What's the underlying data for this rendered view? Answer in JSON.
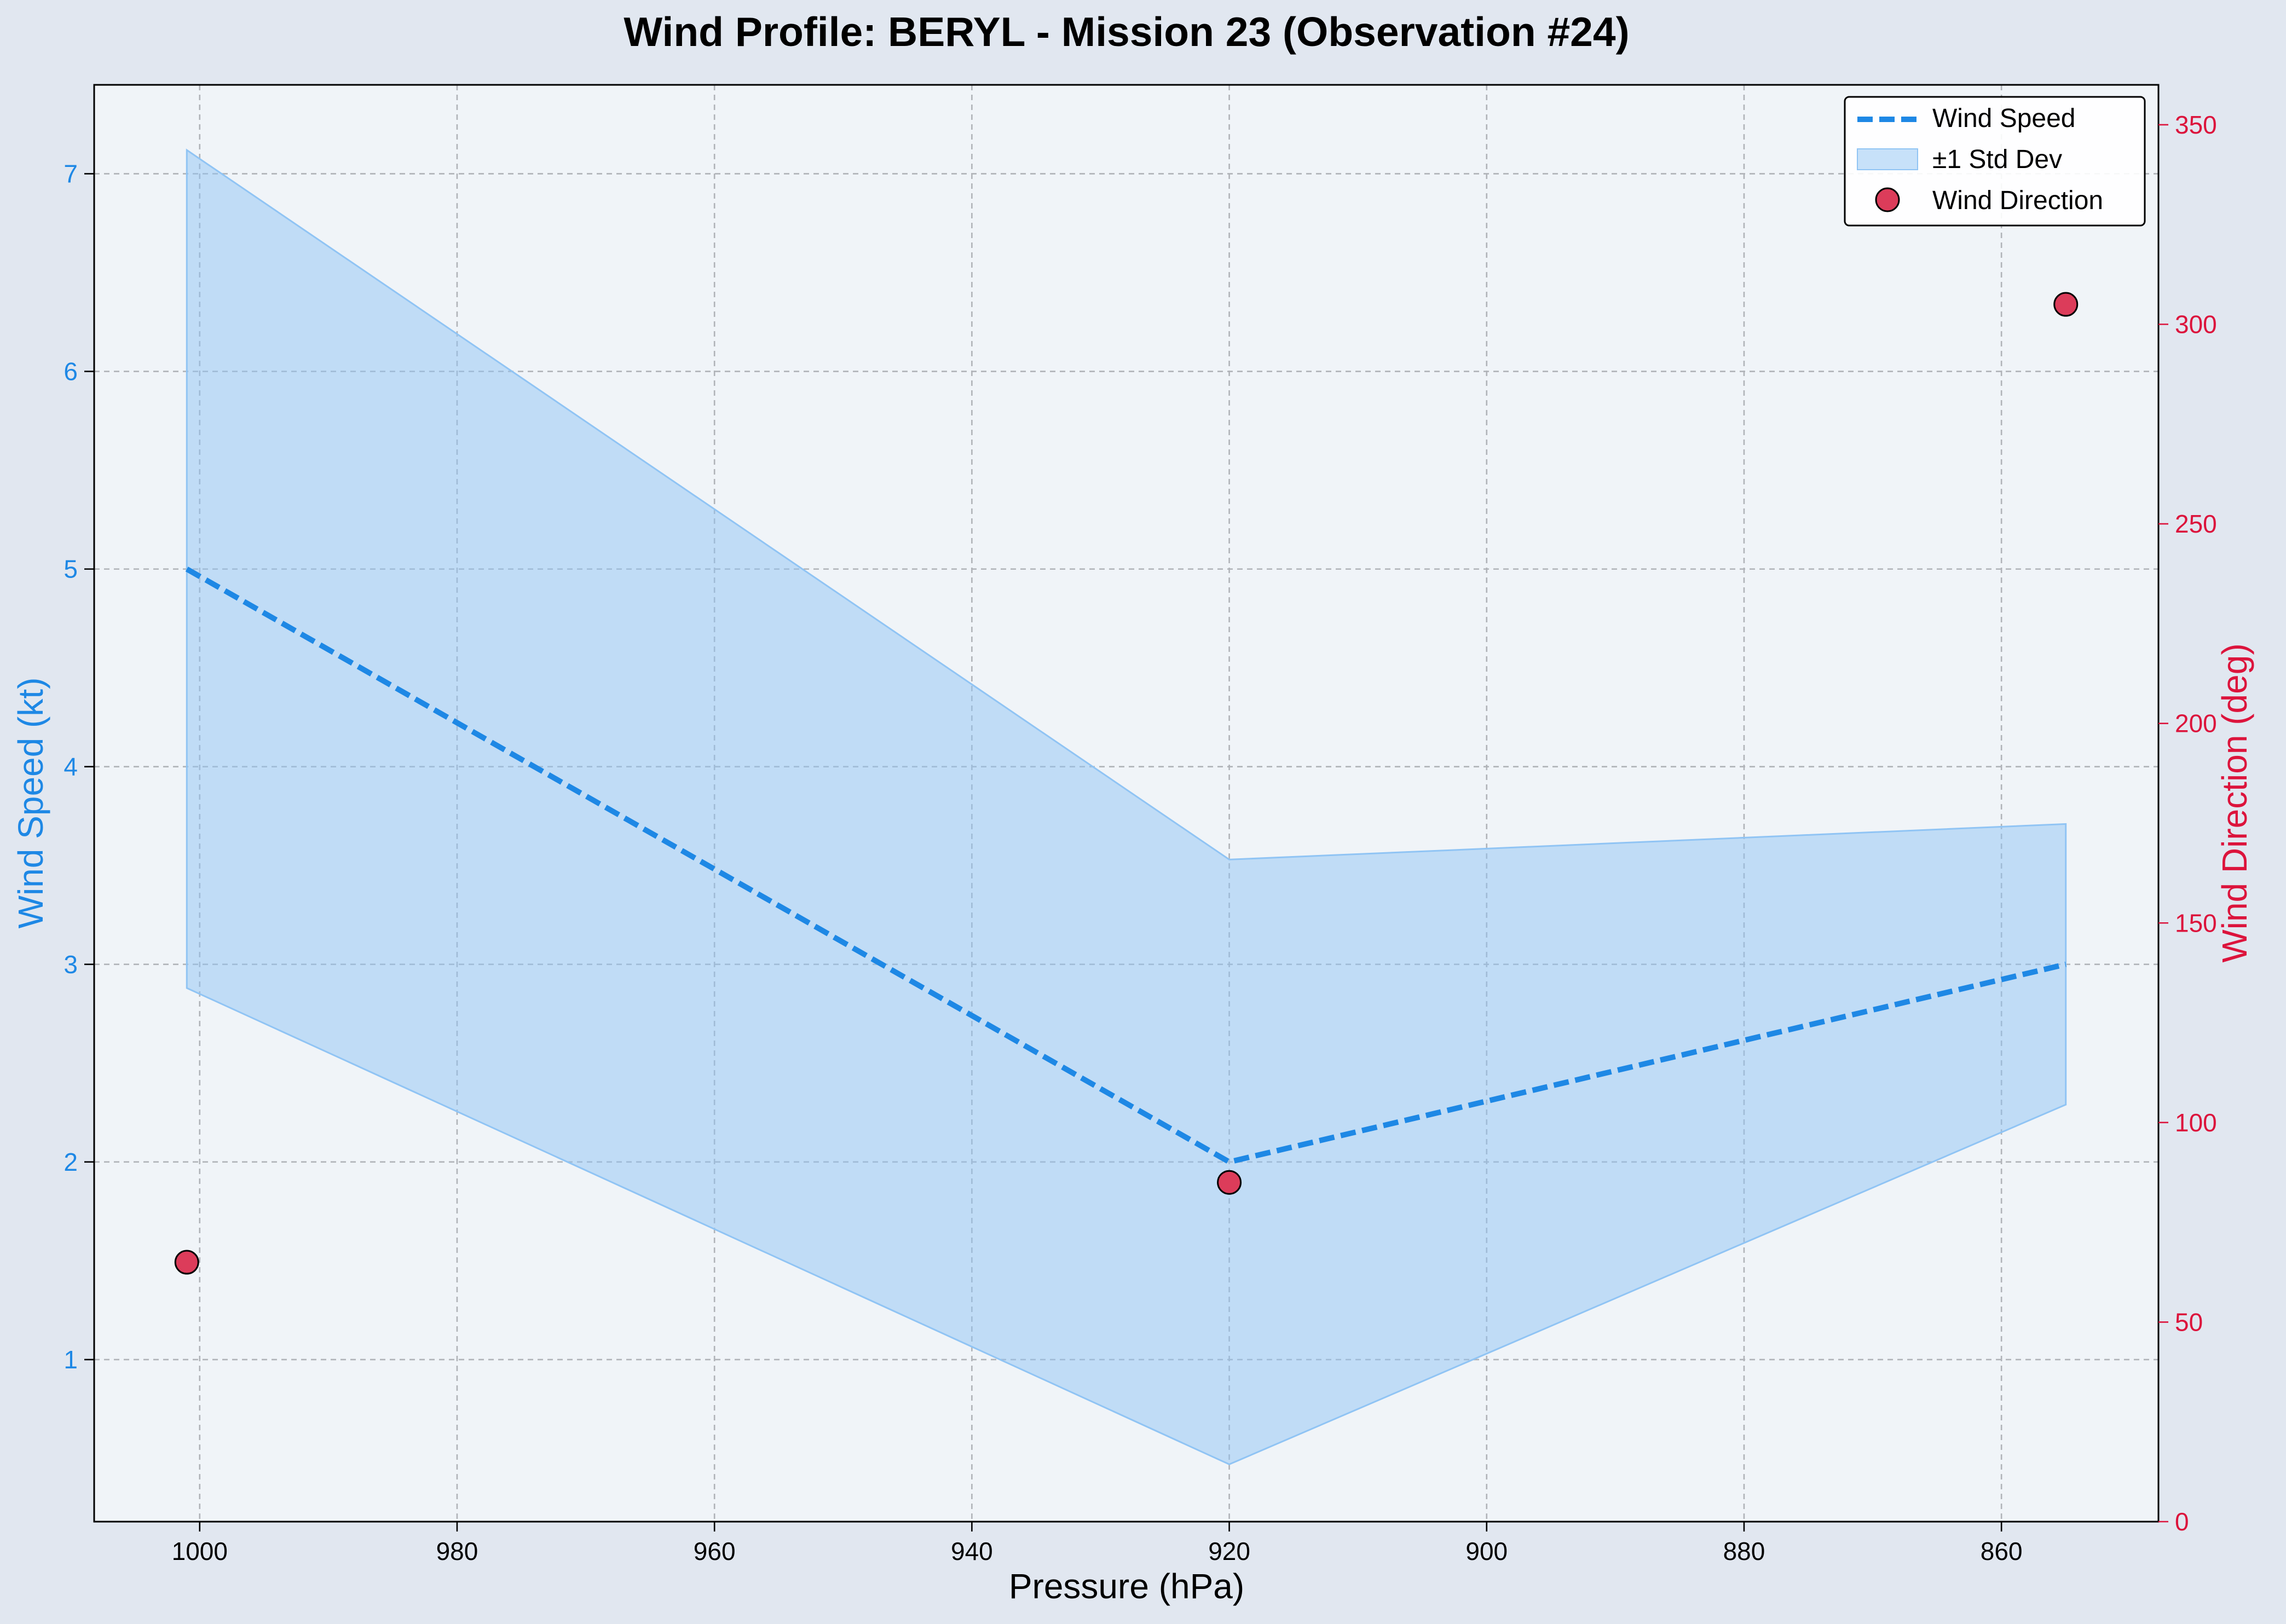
{
  "chart_data": {
    "type": "line",
    "title": "Wind Profile: BERYL - Mission 23 (Observation #24)",
    "xlabel": "Pressure (hPa)",
    "ylabel": "Wind Speed (kt)",
    "y2label": "Wind Direction (deg)",
    "x_inverted": true,
    "xlim": [
      1008.2,
      847.8
    ],
    "ylim": [
      0.18,
      7.45
    ],
    "y2lim": [
      0,
      360
    ],
    "x_ticks": [
      1000,
      980,
      960,
      940,
      920,
      900,
      880,
      860
    ],
    "y_ticks": [
      1,
      2,
      3,
      4,
      5,
      6,
      7
    ],
    "y2_ticks": [
      0,
      50,
      100,
      150,
      200,
      250,
      300,
      350
    ],
    "grid": true,
    "legend_position": "top-right",
    "colors": {
      "speed": "#1e88e5",
      "band_fill": "#90c4f4",
      "direction": "#dc3c5a",
      "direction_axis": "#dc143c",
      "plot_bg": "#f0f4f8"
    },
    "x": [
      1001,
      920,
      855
    ],
    "series": [
      {
        "name": "Wind Speed",
        "kind": "line",
        "axis": "left",
        "values": [
          5.0,
          2.0,
          3.0
        ]
      },
      {
        "name": "±1 Std Dev",
        "kind": "band",
        "axis": "left",
        "lower": [
          2.88,
          0.47,
          2.29
        ],
        "upper": [
          7.12,
          3.53,
          3.71
        ]
      },
      {
        "name": "Wind Direction",
        "kind": "scatter",
        "axis": "right",
        "values": [
          65,
          85,
          305
        ]
      }
    ]
  }
}
